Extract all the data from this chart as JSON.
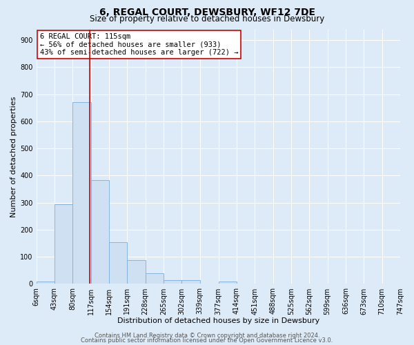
{
  "title": "6, REGAL COURT, DEWSBURY, WF12 7DE",
  "subtitle": "Size of property relative to detached houses in Dewsbury",
  "xlabel": "Distribution of detached houses by size in Dewsbury",
  "ylabel": "Number of detached properties",
  "bar_edges": [
    6,
    43,
    80,
    117,
    154,
    191,
    228,
    265,
    302,
    339,
    377,
    414,
    451,
    488,
    525,
    562,
    599,
    636,
    673,
    710,
    747
  ],
  "bar_heights": [
    8,
    295,
    672,
    383,
    155,
    88,
    40,
    14,
    14,
    0,
    10,
    0,
    0,
    0,
    0,
    0,
    0,
    0,
    0,
    0
  ],
  "bar_color": "#cfe0f3",
  "bar_edge_color": "#7aaedb",
  "vline_x": 115,
  "vline_color": "#cc0000",
  "ylim": [
    0,
    940
  ],
  "yticks": [
    0,
    100,
    200,
    300,
    400,
    500,
    600,
    700,
    800,
    900
  ],
  "xtick_labels": [
    "6sqm",
    "43sqm",
    "80sqm",
    "117sqm",
    "154sqm",
    "191sqm",
    "228sqm",
    "265sqm",
    "302sqm",
    "339sqm",
    "377sqm",
    "414sqm",
    "451sqm",
    "488sqm",
    "525sqm",
    "562sqm",
    "599sqm",
    "636sqm",
    "673sqm",
    "710sqm",
    "747sqm"
  ],
  "annotation_title": "6 REGAL COURT: 115sqm",
  "annotation_line1": "← 56% of detached houses are smaller (933)",
  "annotation_line2": "43% of semi-detached houses are larger (722) →",
  "annotation_box_color": "#ffffff",
  "annotation_box_edge_color": "#cc0000",
  "footer1": "Contains HM Land Registry data © Crown copyright and database right 2024.",
  "footer2": "Contains public sector information licensed under the Open Government Licence v3.0.",
  "background_color": "#ddeaf7",
  "plot_background_color": "#ddeaf7",
  "grid_color": "#ffffff",
  "title_fontsize": 10,
  "subtitle_fontsize": 8.5,
  "axis_label_fontsize": 8,
  "tick_fontsize": 7,
  "annotation_fontsize": 7.5,
  "footer_fontsize": 6
}
